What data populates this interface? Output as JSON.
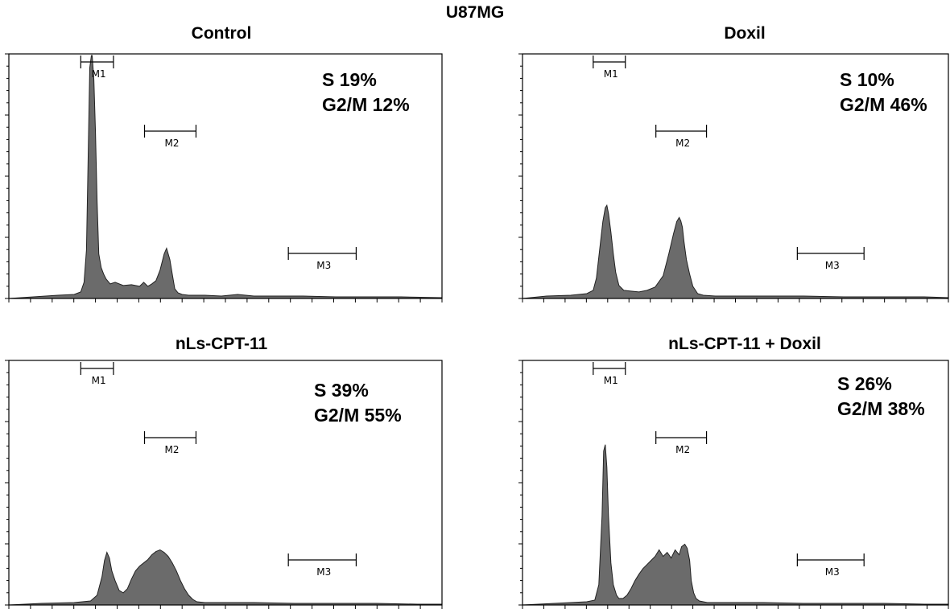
{
  "title": "U87MG",
  "chart_data": [
    {
      "type": "area",
      "title": "Control",
      "stats": [
        {
          "label": "S",
          "value": "19%"
        },
        {
          "label": "G2/M",
          "value": "12%"
        }
      ],
      "markers": [
        {
          "label": "M1",
          "range": [
            88,
            128
          ]
        },
        {
          "label": "M2",
          "range": [
            166,
            229
          ]
        },
        {
          "label": "M3",
          "range": [
            342,
            425
          ]
        }
      ],
      "xlim": [
        0,
        530
      ],
      "ylim": [
        0,
        300
      ],
      "x": [
        0,
        30,
        60,
        80,
        88,
        92,
        95,
        97,
        99,
        101,
        102,
        104,
        106,
        108,
        110,
        113,
        116,
        119,
        124,
        130,
        140,
        150,
        160,
        165,
        170,
        175,
        180,
        185,
        190,
        193,
        197,
        200,
        203,
        207,
        212,
        220,
        240,
        260,
        280,
        300,
        330,
        360,
        400,
        440,
        480,
        530
      ],
      "y": [
        0,
        2,
        4,
        5,
        8,
        20,
        60,
        175,
        285,
        300,
        300,
        270,
        205,
        120,
        55,
        38,
        30,
        24,
        18,
        20,
        16,
        17,
        15,
        20,
        15,
        18,
        22,
        35,
        55,
        62,
        48,
        30,
        12,
        7,
        5,
        4,
        4,
        3,
        5,
        3,
        3,
        3,
        2,
        2,
        2,
        1
      ]
    },
    {
      "type": "area",
      "title": "Doxil",
      "stats": [
        {
          "label": "S",
          "value": "10%"
        },
        {
          "label": "G2/M",
          "value": "46%"
        }
      ],
      "markers": [
        {
          "label": "M1",
          "range": [
            88,
            128
          ]
        },
        {
          "label": "M2",
          "range": [
            166,
            229
          ]
        },
        {
          "label": "M3",
          "range": [
            342,
            425
          ]
        }
      ],
      "xlim": [
        0,
        530
      ],
      "ylim": [
        0,
        300
      ],
      "x": [
        0,
        30,
        60,
        80,
        88,
        92,
        96,
        100,
        103,
        105,
        107,
        110,
        113,
        116,
        120,
        126,
        135,
        145,
        155,
        165,
        175,
        182,
        188,
        192,
        195,
        197,
        199,
        201,
        204,
        208,
        212,
        218,
        225,
        240,
        260,
        300,
        350,
        400,
        450,
        500,
        530
      ],
      "y": [
        0,
        3,
        4,
        6,
        10,
        25,
        60,
        95,
        112,
        115,
        105,
        82,
        55,
        32,
        16,
        10,
        9,
        8,
        10,
        14,
        28,
        55,
        80,
        95,
        100,
        96,
        88,
        70,
        48,
        30,
        15,
        6,
        4,
        3,
        3,
        3,
        3,
        2,
        2,
        2,
        1
      ]
    },
    {
      "type": "area",
      "title": "nLs-CPT-11",
      "stats": [
        {
          "label": "S",
          "value": "39%"
        },
        {
          "label": "G2/M",
          "value": "55%"
        }
      ],
      "markers": [
        {
          "label": "M1",
          "range": [
            88,
            128
          ]
        },
        {
          "label": "M2",
          "range": [
            166,
            229
          ]
        },
        {
          "label": "M3",
          "range": [
            342,
            425
          ]
        }
      ],
      "xlim": [
        0,
        530
      ],
      "ylim": [
        0,
        300
      ],
      "x": [
        0,
        40,
        80,
        100,
        108,
        114,
        117,
        120,
        123,
        126,
        130,
        135,
        140,
        145,
        150,
        155,
        160,
        165,
        170,
        175,
        180,
        185,
        190,
        195,
        200,
        205,
        210,
        215,
        220,
        225,
        230,
        240,
        260,
        300,
        350,
        400,
        450,
        500,
        530
      ],
      "y": [
        0,
        2,
        3,
        5,
        12,
        35,
        55,
        65,
        58,
        42,
        30,
        18,
        15,
        20,
        32,
        42,
        48,
        52,
        56,
        62,
        66,
        68,
        65,
        60,
        52,
        42,
        30,
        20,
        12,
        7,
        4,
        3,
        3,
        3,
        2,
        2,
        2,
        1,
        1
      ]
    },
    {
      "type": "area",
      "title": "nLs-CPT-11 + Doxil",
      "stats": [
        {
          "label": "S",
          "value": "26%"
        },
        {
          "label": "G2/M",
          "value": "38%"
        }
      ],
      "markers": [
        {
          "label": "M1",
          "range": [
            88,
            128
          ]
        },
        {
          "label": "M2",
          "range": [
            166,
            229
          ]
        },
        {
          "label": "M3",
          "range": [
            342,
            425
          ]
        }
      ],
      "xlim": [
        0,
        530
      ],
      "ylim": [
        0,
        300
      ],
      "x": [
        0,
        40,
        80,
        90,
        95,
        99,
        101,
        103,
        105,
        107,
        110,
        113,
        117,
        120,
        125,
        130,
        135,
        140,
        145,
        150,
        155,
        160,
        165,
        170,
        175,
        180,
        185,
        190,
        195,
        198,
        202,
        205,
        208,
        210,
        213,
        216,
        220,
        225,
        230,
        240,
        260,
        300,
        350,
        400,
        450,
        500,
        530
      ],
      "y": [
        0,
        2,
        4,
        6,
        25,
        110,
        190,
        198,
        170,
        110,
        52,
        25,
        12,
        8,
        8,
        12,
        20,
        30,
        38,
        45,
        50,
        55,
        60,
        68,
        60,
        65,
        58,
        68,
        62,
        72,
        75,
        70,
        55,
        30,
        15,
        8,
        5,
        4,
        3,
        3,
        3,
        3,
        2,
        2,
        2,
        1,
        1
      ]
    }
  ]
}
